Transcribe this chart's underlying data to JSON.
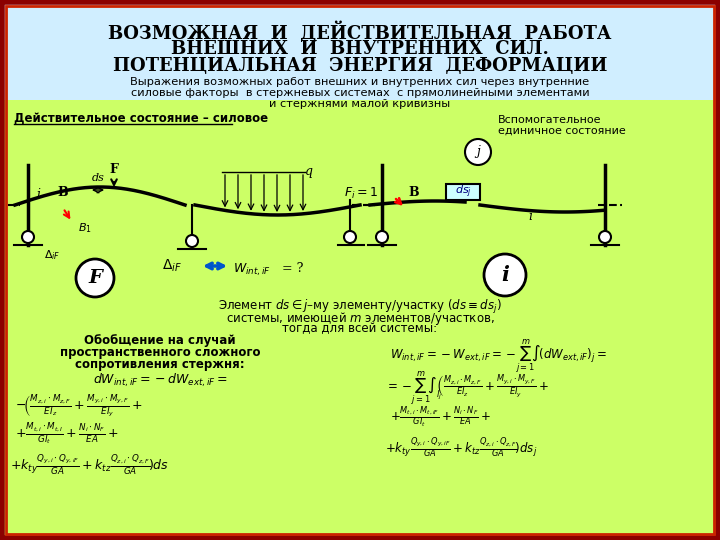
{
  "title_line1": "ВОЗМОЖНАЯ  И  ДЕЙСТВИТЕЛЬНАЯ  РАБОТА",
  "title_line2": "ВНЕШНИХ  И  ВНУТРЕННИХ  СИЛ.",
  "title_line3": "ПОТЕНЦИАЛЬНАЯ  ЭНЕРГИЯ  ДЕФОРМАЦИИ",
  "bg_color_top": "#d0eeff",
  "bg_color_main": "#ccff66",
  "border_color_outer": "#8B0000",
  "border_color_inner": "#cc2200"
}
